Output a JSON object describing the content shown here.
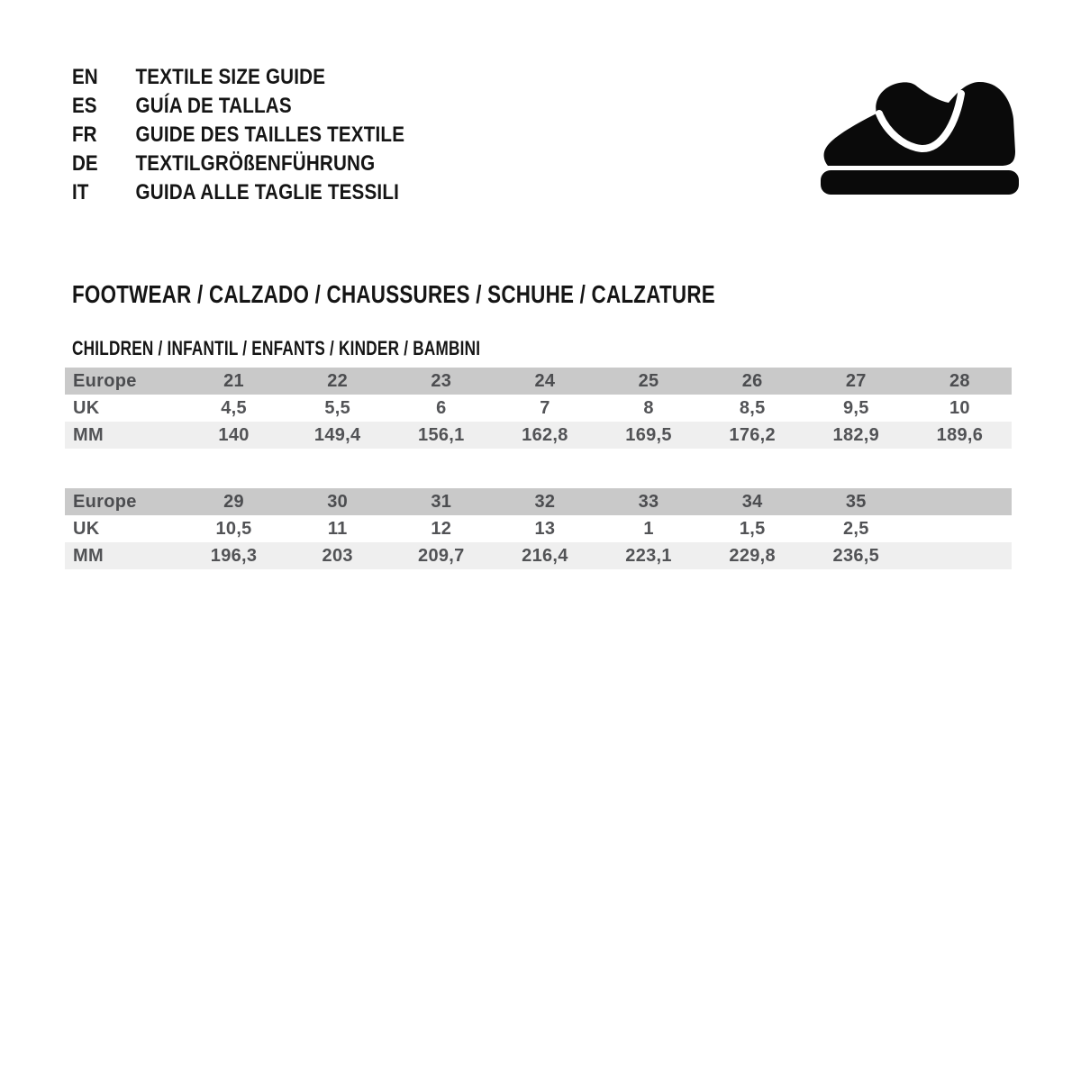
{
  "languages": [
    {
      "code": "EN",
      "label": "TEXTILE SIZE GUIDE"
    },
    {
      "code": "ES",
      "label": "GUÍA DE TALLAS"
    },
    {
      "code": "FR",
      "label": "GUIDE DES TAILLES TEXTILE"
    },
    {
      "code": "DE",
      "label": "TEXTILGRÖßENFÜHRUNG"
    },
    {
      "code": "IT",
      "label": "GUIDA ALLE TAGLIE TESSILI"
    }
  ],
  "logo": {
    "icon": "shoe-icon",
    "color": "#0a0a0a"
  },
  "section": {
    "title": "FOOTWEAR / CALZADO / CHAUSSURES / SCHUHE / CALZATURE"
  },
  "subsection": {
    "title": "CHILDREN / INFANTIL / ENFANTS / KINDER / BAMBINI"
  },
  "size_tables": [
    {
      "rows": [
        {
          "label": "Europe",
          "values": [
            "21",
            "22",
            "23",
            "24",
            "25",
            "26",
            "27",
            "28"
          ]
        },
        {
          "label": "UK",
          "values": [
            "4,5",
            "5,5",
            "6",
            "7",
            "8",
            "8,5",
            "9,5",
            "10"
          ]
        },
        {
          "label": "MM",
          "values": [
            "140",
            "149,4",
            "156,1",
            "162,8",
            "169,5",
            "176,2",
            "182,9",
            "189,6"
          ]
        }
      ]
    },
    {
      "rows": [
        {
          "label": "Europe",
          "values": [
            "29",
            "30",
            "31",
            "32",
            "33",
            "34",
            "35",
            ""
          ]
        },
        {
          "label": "UK",
          "values": [
            "10,5",
            "11",
            "12",
            "13",
            "1",
            "1,5",
            "2,5",
            ""
          ]
        },
        {
          "label": "MM",
          "values": [
            "196,3",
            "203",
            "209,7",
            "216,4",
            "223,1",
            "229,8",
            "236,5",
            ""
          ]
        }
      ]
    }
  ],
  "colors": {
    "page_background": "#ffffff",
    "header_row_bg": "#c9c9c9",
    "alt_row_bg": "#efefef",
    "table_text": "#525356",
    "heading_text": "#151515",
    "logo_fill": "#0a0a0a"
  }
}
